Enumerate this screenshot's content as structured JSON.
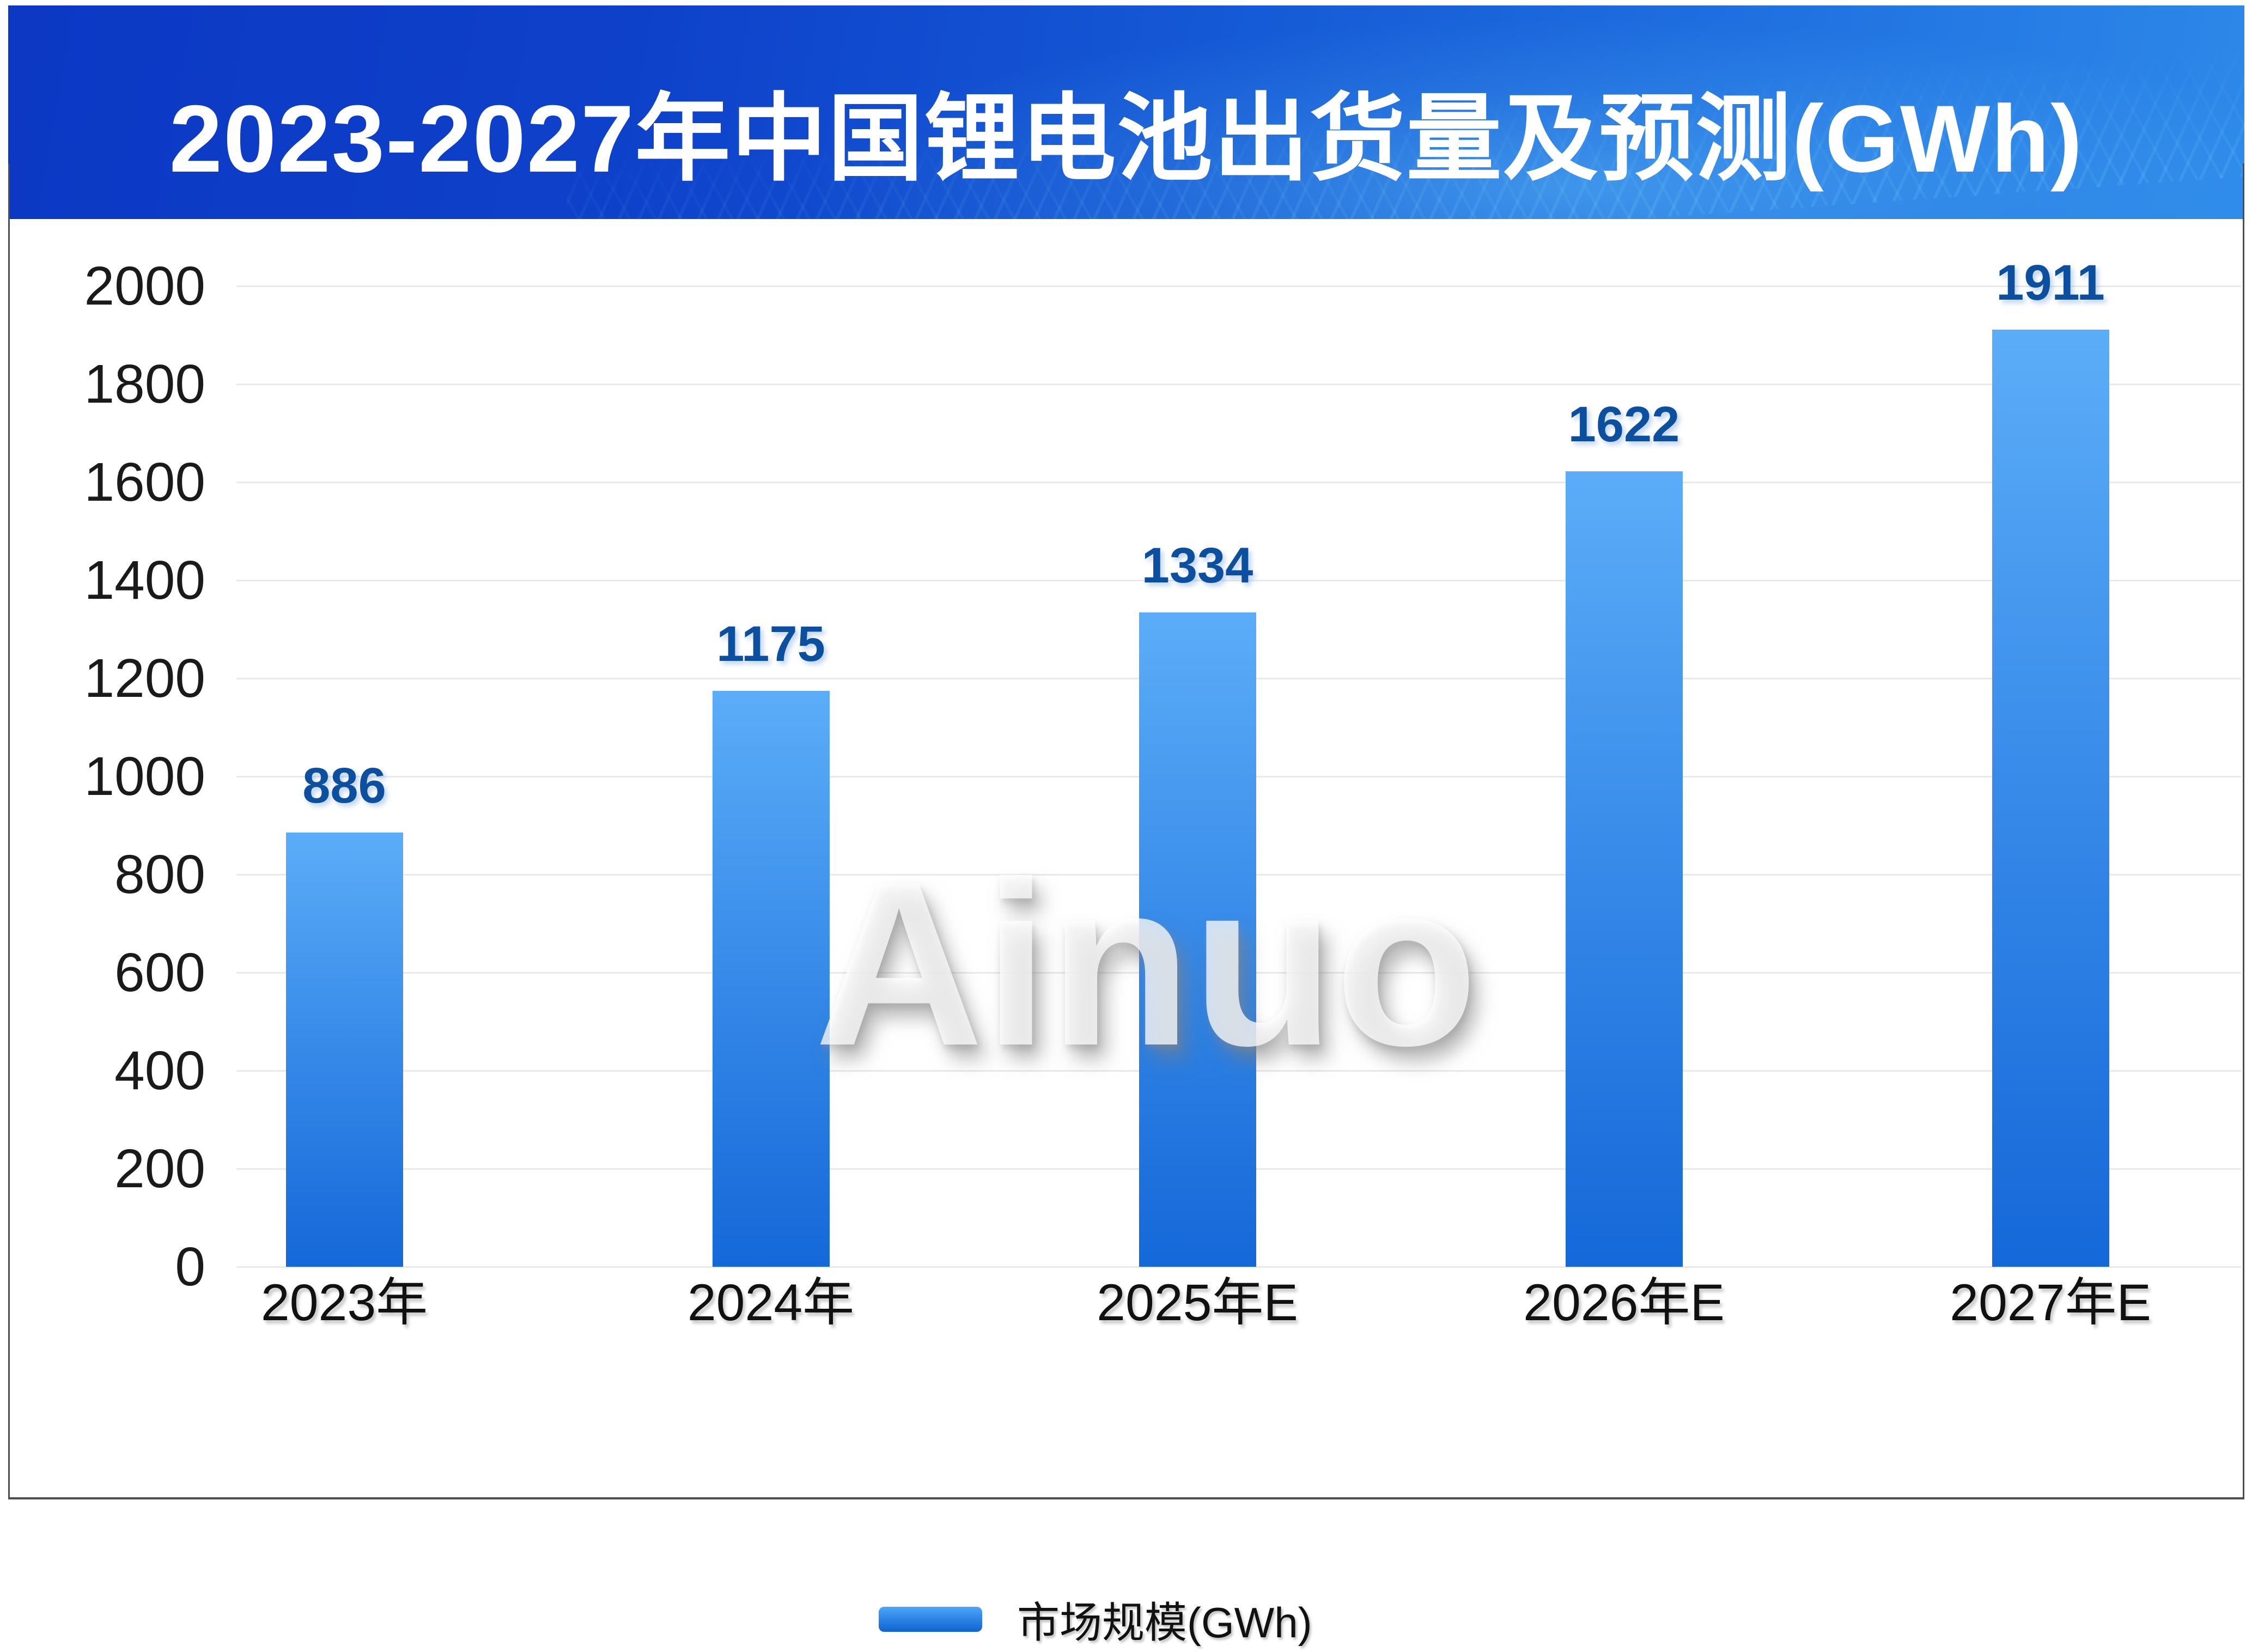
{
  "header": {
    "title": "2023-2027年中国锂电池出货量及预测(GWh)"
  },
  "watermark": "Ainuo",
  "legend": {
    "label": "市场规模(GWh)"
  },
  "chart_data": {
    "type": "bar",
    "title": "2023-2027年中国锂电池出货量及预测(GWh)",
    "categories": [
      "2023年",
      "2024年",
      "2025年E",
      "2026年E",
      "2027年E"
    ],
    "series": [
      {
        "name": "市场规模(GWh)",
        "values": [
          886,
          1175,
          1334,
          1622,
          1911
        ]
      }
    ],
    "data_labels": [
      "886",
      "1175",
      "1334",
      "1622",
      "1911"
    ],
    "ylim": [
      0,
      2000
    ],
    "ytick_step": 200,
    "yticks": [
      0,
      200,
      400,
      600,
      800,
      1000,
      1200,
      1400,
      1600,
      1800,
      2000
    ],
    "grid": true,
    "legend_position": "bottom"
  },
  "colors": {
    "header_gradient_left": "#0c38c4",
    "header_gradient_right": "#2d89e9",
    "bar_top": "#5cadf8",
    "bar_bottom": "#1568d8",
    "data_label": "#0d4f9f",
    "axis_text": "#1a1a1a",
    "gridline": "#e9e9e9",
    "frame": "#4a4e55"
  }
}
